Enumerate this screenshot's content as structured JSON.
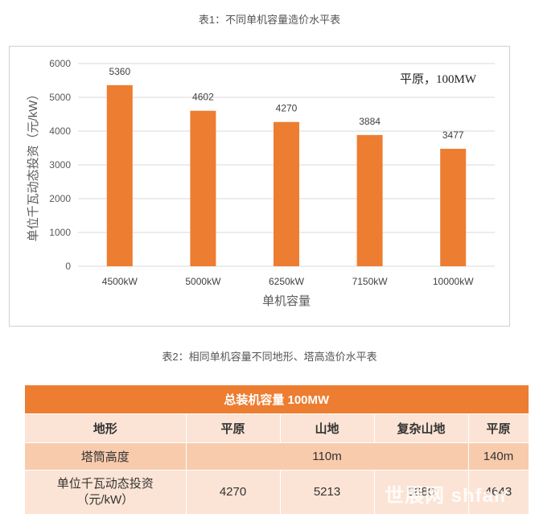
{
  "caption1": "表1：不同单机容量造价水平表",
  "caption2": "表2：相同单机容量不同地形、塔高造价水平表",
  "chart_data": {
    "type": "bar",
    "categories": [
      "4500kW",
      "5000kW",
      "6250kW",
      "7150kW",
      "10000kW"
    ],
    "values": [
      5360,
      4602,
      4270,
      3884,
      3477
    ],
    "data_labels": [
      "5360",
      "4602",
      "4270",
      "3884",
      "3477"
    ],
    "xlabel": "单机容量",
    "ylabel": "单位千瓦动态投资（元/kW）",
    "ylim": [
      0,
      6000
    ],
    "yticks": [
      "0",
      "1000",
      "2000",
      "3000",
      "4000",
      "5000",
      "6000"
    ],
    "annotation": "平原，100MW",
    "grid": true,
    "bar_color": "#ed7d31"
  },
  "table": {
    "title": "总装机容量 100MW",
    "header": [
      "地形",
      "平原",
      "山地",
      "复杂山地",
      "平原"
    ],
    "tower_height": {
      "label": "塔筒高度",
      "merged_value": "110m",
      "last_value": "140m"
    },
    "investment": {
      "label_line1": "单位千瓦动态投资",
      "label_line2": "（元/kW）",
      "values": [
        "4270",
        "5213",
        "5880",
        "4643"
      ]
    }
  },
  "watermark": "世展网 shfair"
}
